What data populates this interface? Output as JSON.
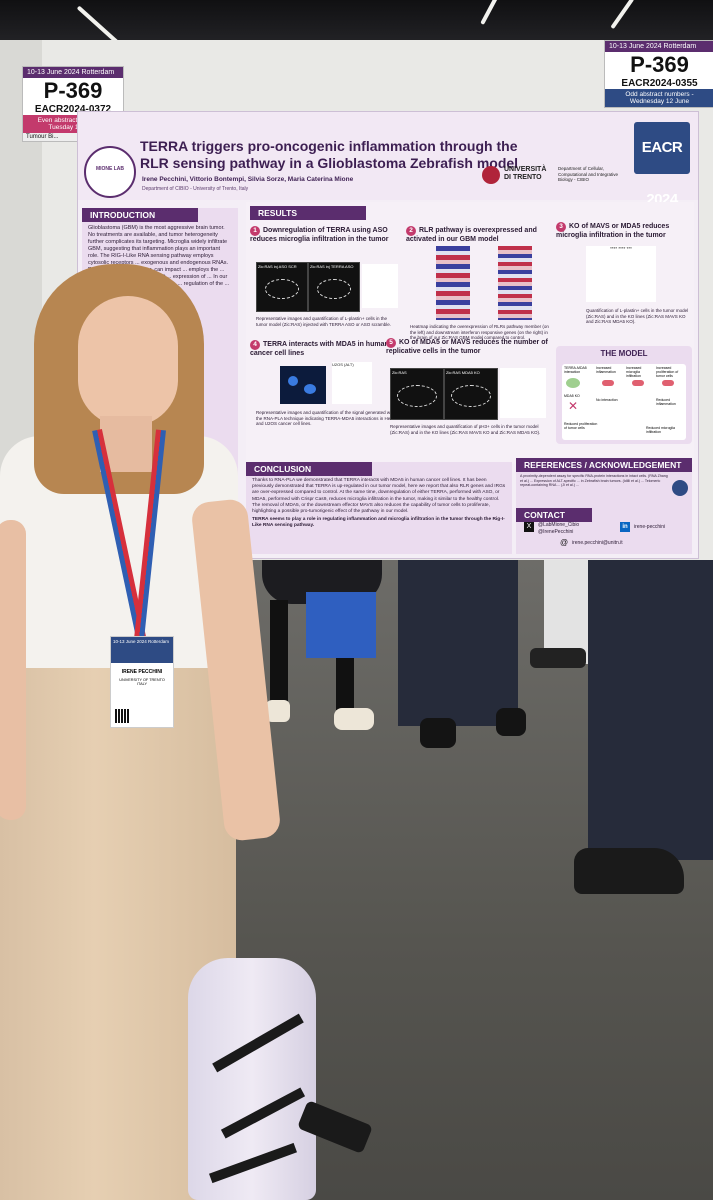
{
  "badge_left": {
    "header": "10-13 June 2024 Rotterdam",
    "number": "P-369",
    "code": "EACR2024-0372",
    "note": "Even abstract numbers - Tuesday 11 June",
    "sub": "Tumour Bi..."
  },
  "badge_right": {
    "header": "10-13 June 2024 Rotterdam",
    "number": "P-369",
    "code": "EACR2024-0355",
    "note": "Odd abstract numbers - Wednesday 12 June"
  },
  "poster": {
    "title": "TERRA triggers pro-oncogenic inflammation through the RLR sensing pathway in a Glioblastoma Zebrafish model",
    "authors": "Irene Pecchini, Vittorio Bontempi, Silvia Sorze, Maria Caterina Mione",
    "department": "Department of CIBIO - University of Trento, Italy",
    "university": "UNIVERSITÀ DI TRENTO",
    "university_dept": "Department of Cellular, Computational and Integrative Biology - CIBIO",
    "event_logo": "EACR 2024",
    "lab_logo": "MIONE LAB",
    "introduction": {
      "heading": "INTRODUCTION",
      "text": "Glioblastoma (GBM) is the most aggressive brain tumor. No treatments are available, and tumor heterogeneity further complicates its targeting. Microglia widely infiltrate GBM, suggesting that inflammation plays an important role. The RIG-I-Like RNA sensing pathway employs cytosolic receptors ... exogenous and endogenous RNAs. Dysregulation ... in cancer, can impact ... employs the ... (ALT) pathway ... tumors exhibit ... expression of ... In our model ... infiltration, ... inflammation. ... regulation of the ... tumors."
    },
    "results": {
      "heading": "RESULTS",
      "panels": [
        {
          "num": "1",
          "title": "Downregulation of TERRA using ASO reduces microglia infiltration in the tumor",
          "caption": "Representative images and quantification of L-plastin+ cells in the tumor model (Zic:RAS) injected with TERRA ASO or ASO scramble.",
          "img_labels": [
            "Zic:RAS inj ASO SCR",
            "Zic:RAS inj TERRA ASO"
          ]
        },
        {
          "num": "2",
          "title": "RLR pathway is overexpressed and activated in our GBM model",
          "caption": "Heatmap indicating the overexpression of RLRs pathway member (on the left) and downstream interferon responsive genes (on the right) in the brain of our Zic:RAS GBM model compared to control."
        },
        {
          "num": "3",
          "title": "KO of MAVS or MDA5 reduces microglia infiltration in the tumor",
          "caption": "Quantification of L-plastin+ cells in the tumor model (Zic:RAS) and in the KO lines (Zic:RAS MAVS KO and Zic:RAS MDA5 KO).",
          "stat": "**** **** ***"
        },
        {
          "num": "4",
          "title": "TERRA interacts with MDA5 in human cancer cell lines",
          "caption": "Representative images and quantification of the signal generated with the RNA-PLA technique indicating TERRA-MDA5 interactions in HeLa and U2OS cancer cell lines.",
          "img_labels": [
            "U2OS (ALT)"
          ]
        },
        {
          "num": "5",
          "title": "KO of MDA5 or MAVS reduces the number of replicative cells in the tumor",
          "caption": "Representative images and quantification of pH3+ cells in the tumor model (Zic:RAS) and in the KO lines (Zic:RAS MAVS KO and Zic:RAS MDA5 KO).",
          "img_labels": [
            "Zic:RAS",
            "Zic:RAS MDA5 KO"
          ]
        }
      ]
    },
    "model": {
      "heading": "THE MODEL",
      "labels": [
        "TERRA-MDA5 interaction",
        "Increased inflammation",
        "Increased microglia infiltration",
        "Increased proliferation of tumor cells",
        "MDA5 KO",
        "No interaction",
        "Reduced inflammation",
        "Reduced proliferation of tumor cells",
        "Reduced microglia infiltration"
      ]
    },
    "conclusion": {
      "heading": "CONCLUSION",
      "text": "Thanks to RNA-PLA we demonstrated that TERRA interacts with MDA5 in human cancer cell lines. It has been previously demonstrated that TERRA is up-regulated in our tumor model, here we report that also RLR genes and IRGs are over-expressed compared to control. At the same time, downregulation of either TERRA, performed with ASO, or MDA5, performed with Crispr Cas9, reduces microglia infiltration in the tumor, making it similar to the healthy control. The removal of MDA5, or the downstream effector MAVS also reduces the capability of tumor cells to proliferate, highlighting a possible pro-tumorigenic effect of the pathway in our model.",
      "bold": "TERRA seems to play a role in regulating inflammation and microglia infiltration in the tumor through the Rig-I-Like RNA sensing pathway."
    },
    "references": {
      "heading": "REFERENCES / ACKNOWLEDGEMENT",
      "text": "A proximity-dependent assay for specific RNA-protein interactions in intact cells. (RNA Zhang et al.) ... Expression of ALT-specific ... in Zebrafish brain tumors. (Idilli et al.) ... Telomeric repeat-containing RNA ... (Ji et al.) ..."
    },
    "contact": {
      "heading": "CONTACT",
      "handles": [
        "@LabMione_Cibio",
        "@IrenePecchini",
        "irene-pecchini"
      ],
      "email": "irene.pecchini@unitn.it"
    }
  },
  "name_badge": {
    "header": "10-13 June 2024 Rotterdam",
    "name": "IRENE PECCHINI",
    "affiliation": "UNIVERSITY OF TRENTO",
    "country": "ITALY"
  },
  "colors": {
    "poster_accent": "#5b2d6e",
    "poster_pink": "#c33a6c",
    "lanyard_red": "#d6303c",
    "lanyard_blue": "#2f5fb3"
  }
}
